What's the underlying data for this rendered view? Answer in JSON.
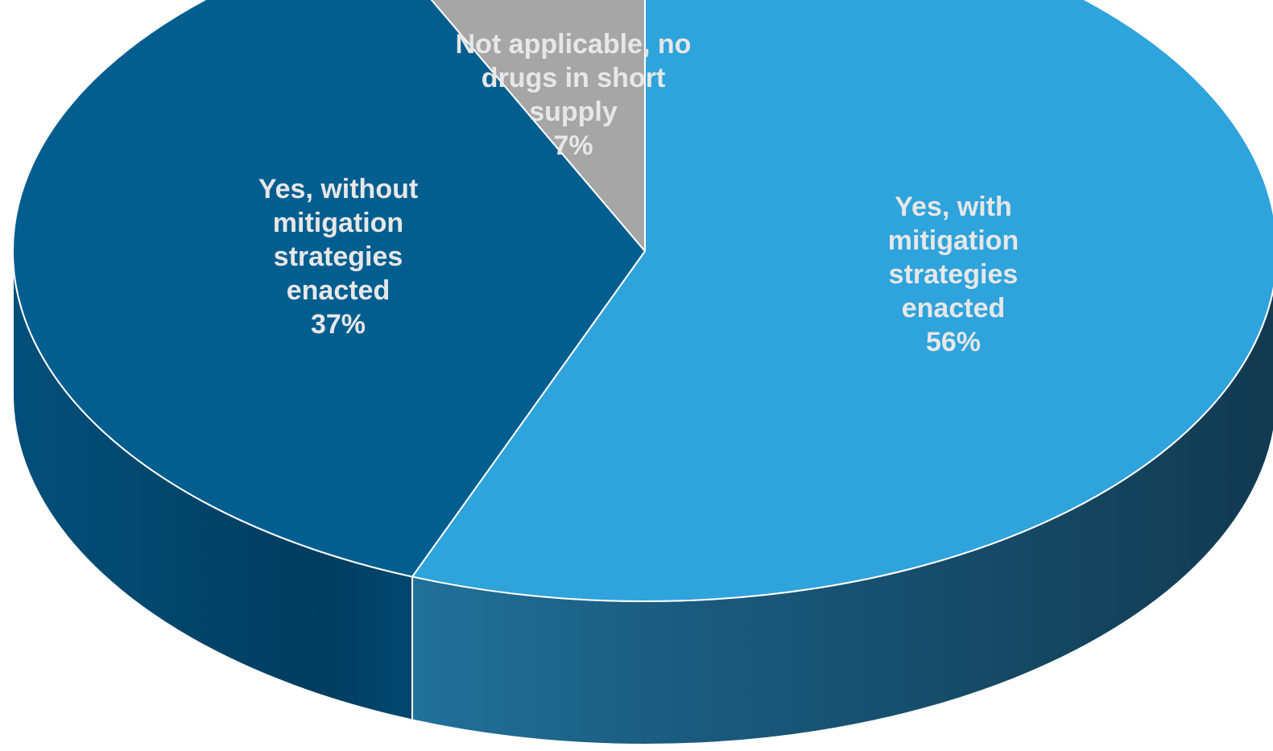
{
  "chart_data": {
    "type": "pie",
    "style": "3d",
    "slices": [
      {
        "key": "yes_with",
        "label_lines": [
          "Yes, with",
          "mitigation",
          "strategies",
          "enacted"
        ],
        "percent_label": "56%",
        "value": 56,
        "color": "#2fa3dc",
        "side_color": "#17405a"
      },
      {
        "key": "yes_without",
        "label_lines": [
          "Yes, without",
          "mitigation",
          "strategies",
          "enacted"
        ],
        "percent_label": "37%",
        "value": 37,
        "color": "#035e90",
        "side_color": "#023b5c"
      },
      {
        "key": "not_applicable",
        "label_lines": [
          "Not applicable, no",
          "drugs in short",
          "supply"
        ],
        "percent_label": "7%",
        "value": 7,
        "color": "#a6a6a6",
        "side_color": "#6e6e6e"
      }
    ]
  }
}
